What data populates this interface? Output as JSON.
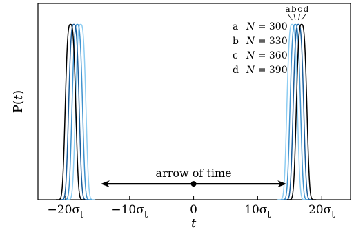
{
  "chart_data": {
    "type": "line",
    "title": "",
    "xlabel": "t",
    "ylabel": "P(t)",
    "xlim": [
      -24.3,
      24.5
    ],
    "ylim": [
      0,
      1.12
    ],
    "grid": false,
    "legend_position": "top-right",
    "x_ticks": [
      {
        "value": -20,
        "main": "−20σ",
        "sub": "t"
      },
      {
        "value": -10,
        "main": "−10σ",
        "sub": "t"
      },
      {
        "value": 0,
        "main": "0",
        "sub": ""
      },
      {
        "value": 10,
        "main": "10σ",
        "sub": "t"
      },
      {
        "value": 20,
        "main": "20σ",
        "sub": "t"
      }
    ],
    "ylabel_main": "P(",
    "ylabel_var": "t",
    "ylabel_close": ")",
    "annotation": {
      "text": "arrow of time",
      "x_start": -14.5,
      "x_end": 14.5,
      "y": 0.09,
      "center_x": 0
    },
    "peak_halfwidth": 0.95,
    "series": [
      {
        "letter": "a",
        "name": "N = 300",
        "n_text": "N",
        "eq_text": " = 300",
        "color": "#8ecdf2",
        "centers": [
          -17.63,
          15.38
        ],
        "label_x": 14.7
      },
      {
        "letter": "b",
        "name": "N = 330",
        "n_text": "N",
        "eq_text": " = 330",
        "color": "#3f93cf",
        "centers": [
          -18.16,
          15.87
        ],
        "label_x": 15.65
      },
      {
        "letter": "c",
        "name": "N = 360",
        "n_text": "N",
        "eq_text": " = 360",
        "color": "#1a5d9a",
        "centers": [
          -18.69,
          16.36
        ],
        "label_x": 16.6
      },
      {
        "letter": "d",
        "name": "N = 390",
        "n_text": "N",
        "eq_text": " = 390",
        "color": "#000000",
        "centers": [
          -19.22,
          16.86
        ],
        "label_x": 17.55
      }
    ]
  }
}
